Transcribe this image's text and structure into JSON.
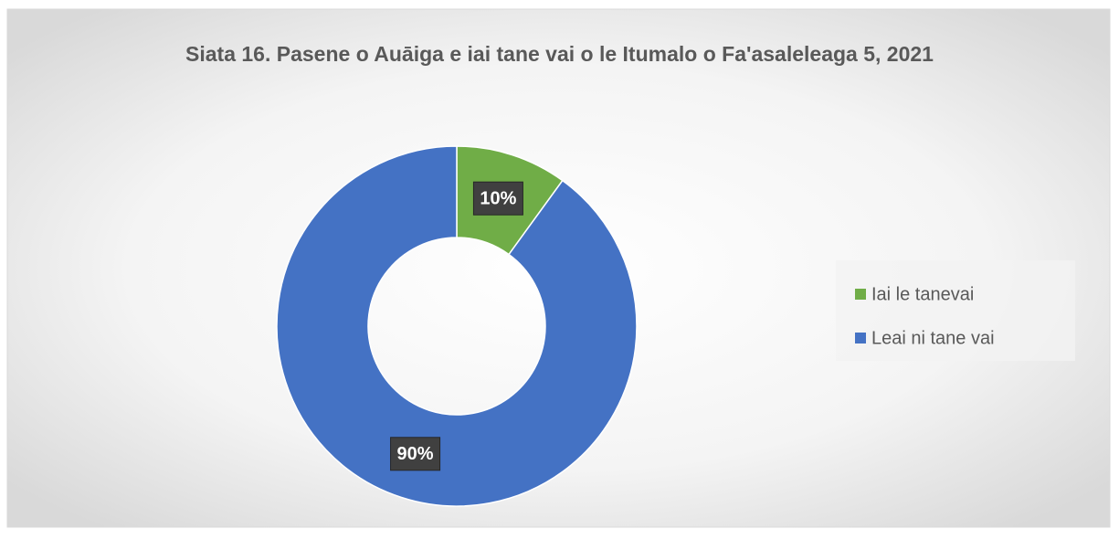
{
  "chart_data": {
    "type": "donut",
    "title": "Siata 16. Pasene o Auāiga e iai tane vai o le Itumalo o Fa'asaleleaga 5, 2021",
    "categories": [
      "Iai le tanevai",
      "Leai ni tane vai"
    ],
    "values": [
      10,
      90
    ],
    "value_labels": [
      "10%",
      "90%"
    ],
    "colors": [
      "#70ad47",
      "#4472c4"
    ],
    "legend": "right"
  }
}
